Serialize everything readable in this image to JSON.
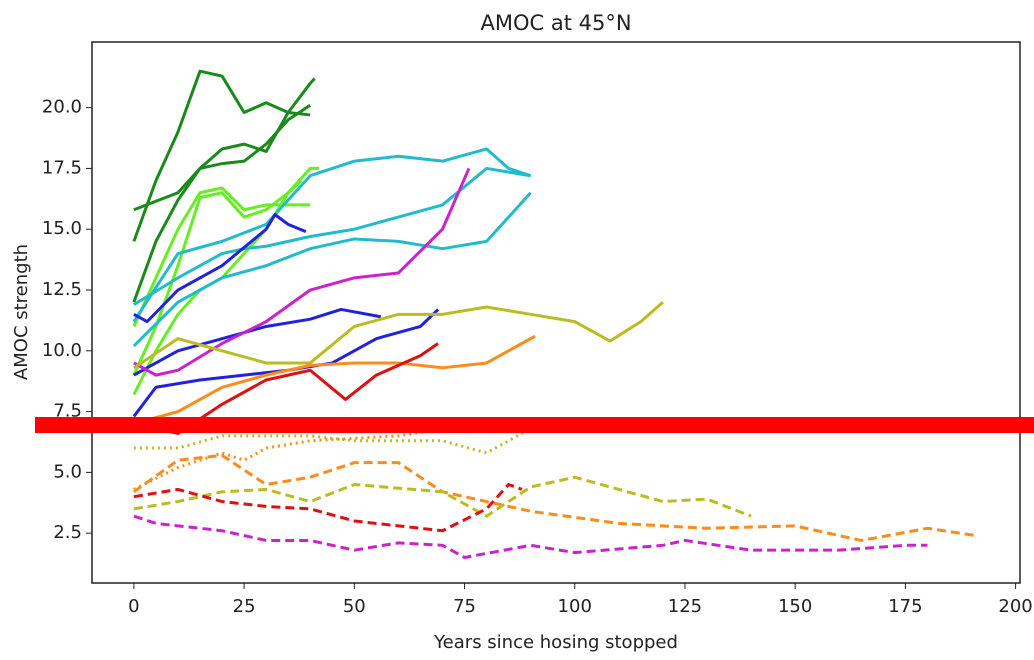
{
  "chart_data": {
    "type": "line",
    "title": "AMOC at 45°N",
    "x_label": "Years since hosing stopped",
    "y_label": "AMOC strength",
    "xlim": [
      -9.5,
      201
    ],
    "ylim": [
      0.45,
      22.7
    ],
    "xticks": [
      0,
      25,
      50,
      75,
      100,
      125,
      150,
      175,
      200
    ],
    "yticks": [
      {
        "value": 2.5,
        "label": "2.5"
      },
      {
        "value": 5,
        "label": "5.0"
      },
      {
        "value": 7.5,
        "label": "7.5"
      },
      {
        "value": 10,
        "label": "10.0"
      },
      {
        "value": 12.5,
        "label": "12.5"
      },
      {
        "value": 15,
        "label": "15.0"
      },
      {
        "value": 17.5,
        "label": "17.5"
      },
      {
        "value": 20,
        "label": "20.0"
      }
    ],
    "grid": false,
    "series": [
      {
        "color": "#1a8a1a",
        "dash": "solid",
        "x": [
          0,
          10,
          15,
          20,
          25,
          30,
          35,
          40
        ],
        "values": [
          15.8,
          16.5,
          17.5,
          17.7,
          17.8,
          18.5,
          19.5,
          20.1
        ]
      },
      {
        "color": "#1a8a1a",
        "dash": "solid",
        "x": [
          0,
          5,
          10,
          15,
          20,
          25,
          30,
          35,
          40,
          41
        ],
        "values": [
          14.5,
          17,
          19,
          21.5,
          21.3,
          19.8,
          20.2,
          19.8,
          21,
          21.2
        ]
      },
      {
        "color": "#1a8a1a",
        "dash": "solid",
        "x": [
          0,
          5,
          10,
          15,
          20,
          25,
          30,
          35,
          40
        ],
        "values": [
          12,
          14.5,
          16.2,
          17.5,
          18.3,
          18.5,
          18.2,
          19.8,
          19.7
        ]
      },
      {
        "color": "#66ee22",
        "dash": "solid",
        "x": [
          0,
          5,
          10,
          15,
          20,
          25,
          30,
          35,
          40
        ],
        "values": [
          11,
          13,
          15,
          16.5,
          16.7,
          15.8,
          16,
          16,
          16
        ]
      },
      {
        "color": "#66ee22",
        "dash": "solid",
        "x": [
          0,
          5,
          10,
          15,
          20,
          25,
          30,
          35,
          38
        ],
        "values": [
          9,
          11,
          13.5,
          16.3,
          16.5,
          15.5,
          15.8,
          16.5,
          17
        ]
      },
      {
        "color": "#66ee22",
        "dash": "solid",
        "x": [
          0,
          5,
          10,
          15,
          20,
          25,
          30,
          35,
          40,
          42
        ],
        "values": [
          8.2,
          10,
          11.5,
          12.5,
          13,
          14,
          15,
          16.5,
          17.5,
          17.5
        ]
      },
      {
        "color": "#22bbcc",
        "dash": "solid",
        "x": [
          0,
          10,
          20,
          25,
          30,
          40,
          50,
          60,
          70,
          80,
          90
        ],
        "values": [
          11.9,
          13,
          14,
          14.2,
          14.3,
          14.7,
          15,
          15.5,
          16,
          17.5,
          17.2
        ]
      },
      {
        "color": "#22bbcc",
        "dash": "solid",
        "x": [
          0,
          10,
          20,
          30,
          40,
          50,
          60,
          70,
          80,
          90
        ],
        "values": [
          10.2,
          12,
          13,
          13.5,
          14.2,
          14.6,
          14.5,
          14.2,
          14.5,
          16.5
        ]
      },
      {
        "color": "#22bbcc",
        "dash": "solid",
        "x": [
          0,
          10,
          20,
          30,
          40,
          50,
          60,
          70,
          80,
          85,
          90
        ],
        "values": [
          11.2,
          14,
          14.5,
          15.2,
          17.2,
          17.8,
          18,
          17.8,
          18.3,
          17.5,
          17.2
        ]
      },
      {
        "color": "#2222dd",
        "dash": "solid",
        "x": [
          0,
          3,
          10,
          20,
          30,
          32,
          35,
          39
        ],
        "values": [
          11.5,
          11.2,
          12.5,
          13.5,
          15,
          15.6,
          15.2,
          14.9
        ]
      },
      {
        "color": "#2222dd",
        "dash": "solid",
        "x": [
          0,
          10,
          20,
          30,
          40,
          47,
          56
        ],
        "values": [
          9,
          10,
          10.5,
          11,
          11.3,
          11.7,
          11.4
        ]
      },
      {
        "color": "#2222dd",
        "dash": "solid",
        "x": [
          0,
          5,
          15,
          25,
          35,
          45,
          55,
          65,
          69
        ],
        "values": [
          7.3,
          8.5,
          8.8,
          9,
          9.2,
          9.5,
          10.5,
          11,
          11.7
        ]
      },
      {
        "color": "#cc22cc",
        "dash": "solid",
        "x": [
          0,
          5,
          10,
          20,
          30,
          40,
          50,
          60,
          70,
          76
        ],
        "values": [
          9.5,
          9,
          9.2,
          10.3,
          11.2,
          12.5,
          13,
          13.2,
          15,
          17.5
        ]
      },
      {
        "color": "#bbbb22",
        "dash": "solid",
        "x": [
          0,
          10,
          20,
          30,
          40,
          50,
          60,
          70,
          80,
          90,
          100,
          108,
          115,
          120
        ],
        "values": [
          9.3,
          10.5,
          10,
          9.5,
          9.5,
          11,
          11.5,
          11.5,
          11.8,
          11.5,
          11.2,
          10.4,
          11.2,
          12
        ]
      },
      {
        "color": "#ff8c1a",
        "dash": "solid",
        "x": [
          0,
          10,
          20,
          30,
          40,
          50,
          60,
          70,
          80,
          91
        ],
        "values": [
          7,
          7.5,
          8.5,
          9,
          9.4,
          9.5,
          9.5,
          9.3,
          9.5,
          10.6
        ]
      },
      {
        "color": "#dd1111",
        "dash": "solid",
        "x": [
          0,
          5,
          10,
          20,
          30,
          40,
          48,
          55,
          65,
          69
        ],
        "values": [
          7.2,
          6.8,
          6.6,
          7.8,
          8.8,
          9.2,
          8,
          9,
          9.8,
          10.3
        ]
      },
      {
        "color": "#bbbb22",
        "dash": "dotted",
        "x": [
          0,
          10,
          20,
          30,
          40,
          50,
          70,
          80,
          90
        ],
        "values": [
          6,
          6,
          6.5,
          6.5,
          6.5,
          6.3,
          6.3,
          5.8,
          6.8
        ]
      },
      {
        "color": "#ff8c1a",
        "dash": "dotted",
        "x": [
          0,
          10,
          20,
          25,
          30,
          40,
          60,
          70,
          80
        ],
        "values": [
          4.3,
          5.2,
          5.8,
          5.5,
          6,
          6.3,
          6.5,
          6.8,
          6.8
        ]
      },
      {
        "color": "#ff8c1a",
        "dash": "dashed",
        "x": [
          0,
          10,
          20,
          30,
          40,
          50,
          60,
          70,
          90,
          110,
          130,
          150,
          165,
          180,
          191
        ],
        "values": [
          4.2,
          5.5,
          5.7,
          4.5,
          4.8,
          5.4,
          5.4,
          4.2,
          3.4,
          2.9,
          2.7,
          2.8,
          2.2,
          2.7,
          2.4
        ]
      },
      {
        "color": "#bbbb22",
        "dash": "dashed",
        "x": [
          0,
          10,
          20,
          30,
          40,
          50,
          70,
          80,
          90,
          100,
          120,
          130,
          140
        ],
        "values": [
          3.5,
          3.8,
          4.2,
          4.3,
          3.8,
          4.5,
          4.2,
          3.2,
          4.4,
          4.8,
          3.8,
          3.9,
          3.2
        ]
      },
      {
        "color": "#dd1111",
        "dash": "dashed",
        "x": [
          0,
          10,
          20,
          30,
          40,
          50,
          60,
          70,
          80,
          85,
          88
        ],
        "values": [
          4,
          4.3,
          3.8,
          3.6,
          3.5,
          3,
          2.8,
          2.6,
          3.5,
          4.5,
          4.3
        ]
      },
      {
        "color": "#cc22cc",
        "dash": "dashed",
        "x": [
          0,
          5,
          20,
          30,
          40,
          50,
          60,
          70,
          75,
          90,
          100,
          120,
          125,
          140,
          160,
          175,
          180
        ],
        "values": [
          3.2,
          2.9,
          2.6,
          2.2,
          2.2,
          1.8,
          2.1,
          2,
          1.5,
          2,
          1.7,
          2,
          2.2,
          1.8,
          1.8,
          2,
          2
        ]
      }
    ]
  }
}
